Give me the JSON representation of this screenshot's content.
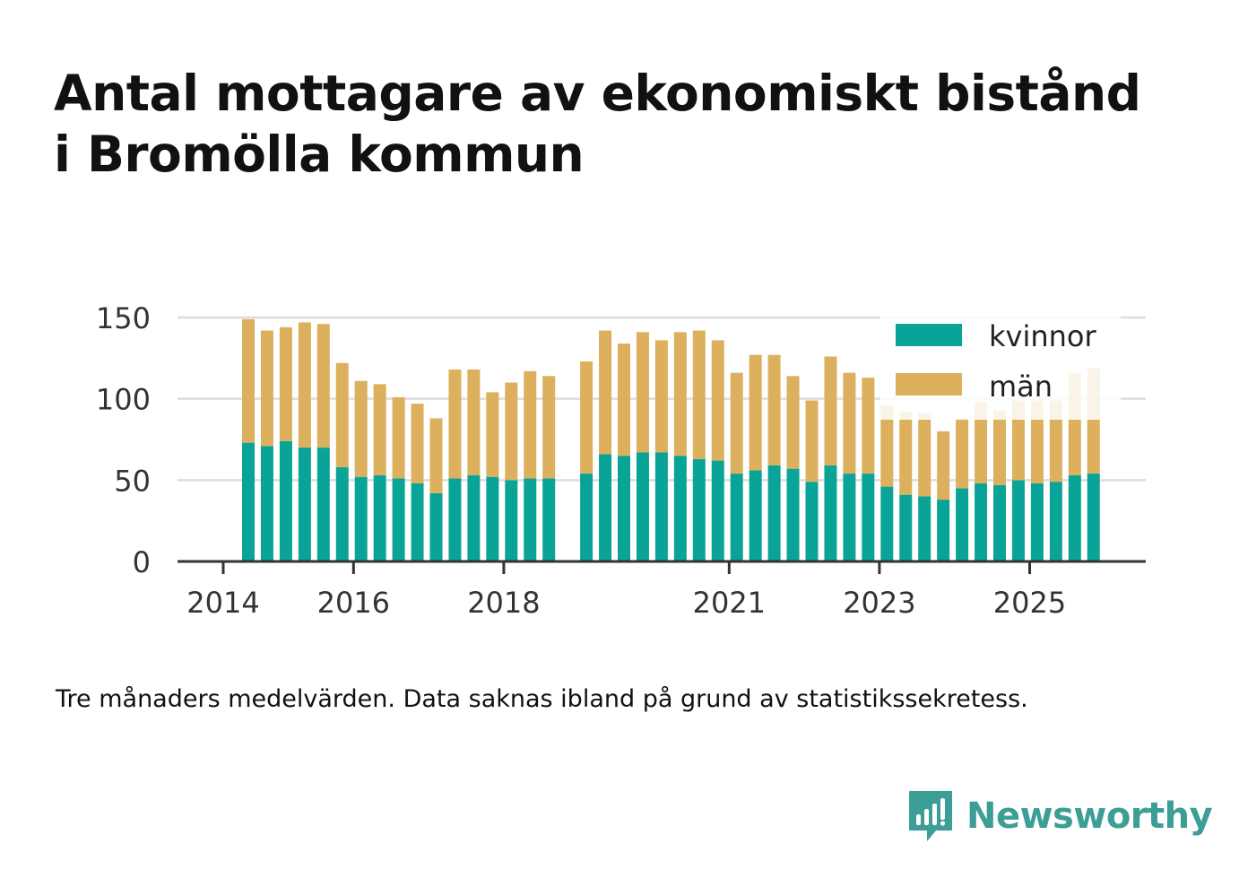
{
  "title_lines": [
    "Antal mottagare av ekonomiskt bistånd",
    "i Bromölla kommun"
  ],
  "footnote": "Tre månaders medelvärden. Data saknas ibland på grund av statistikssekretess.",
  "brand": "Newsworthy",
  "colors": {
    "kvinnor": "#0aa397",
    "man": "#dcb05d",
    "grid": "#dddddd",
    "axis": "#333333",
    "brand": "#3c9e96"
  },
  "chart_data": {
    "type": "bar",
    "stacked": true,
    "title": "Antal mottagare av ekonomiskt bistånd i Bromölla kommun",
    "xlabel": "",
    "ylabel": "",
    "ylim": [
      0,
      150
    ],
    "yticks": [
      0,
      50,
      100,
      150
    ],
    "xticks": [
      "2014",
      "2016",
      "2018",
      "2021",
      "2023",
      "2025"
    ],
    "grid": true,
    "legend": "top-right",
    "categories": [
      "2014 Q2",
      "2014 Q3",
      "2014 Q4",
      "2015 Q1",
      "2015 Q2",
      "2015 Q3",
      "2015 Q4",
      "2016 Q1",
      "2016 Q2",
      "2016 Q3",
      "2016 Q4",
      "2017 Q1",
      "2017 Q2",
      "2017 Q3",
      "2017 Q4",
      "2018 Q1",
      "2018 Q2",
      "2018 Q3",
      "2018 Q4",
      "2019 Q1",
      "2019 Q2",
      "2019 Q3",
      "2019 Q4",
      "2020 Q1",
      "2020 Q2",
      "2020 Q3",
      "2020 Q4",
      "2021 Q1",
      "2021 Q2",
      "2021 Q3",
      "2021 Q4",
      "2022 Q1",
      "2022 Q2",
      "2022 Q3",
      "2022 Q4",
      "2023 Q1",
      "2023 Q2",
      "2023 Q3",
      "2023 Q4",
      "2024 Q1",
      "2024 Q2",
      "2024 Q3",
      "2024 Q4",
      "2025 Q1",
      "2025 Q2",
      "2025 Q3",
      "2025 Q4"
    ],
    "series": [
      {
        "name": "kvinnor",
        "values": [
          73,
          71,
          74,
          70,
          70,
          58,
          52,
          53,
          51,
          48,
          42,
          51,
          53,
          52,
          50,
          51,
          51,
          null,
          54,
          66,
          65,
          67,
          67,
          65,
          63,
          62,
          54,
          56,
          59,
          57,
          49,
          59,
          54,
          54,
          46,
          41,
          40,
          38,
          45,
          48,
          47,
          50,
          48,
          49,
          53,
          54,
          null
        ]
      },
      {
        "name": "män",
        "values": [
          76,
          71,
          70,
          77,
          76,
          64,
          59,
          56,
          50,
          49,
          46,
          67,
          65,
          52,
          60,
          66,
          63,
          null,
          69,
          76,
          69,
          74,
          69,
          76,
          79,
          74,
          62,
          71,
          68,
          57,
          50,
          67,
          62,
          59,
          50,
          51,
          51,
          42,
          43,
          50,
          46,
          49,
          51,
          50,
          63,
          65,
          null
        ]
      }
    ]
  }
}
